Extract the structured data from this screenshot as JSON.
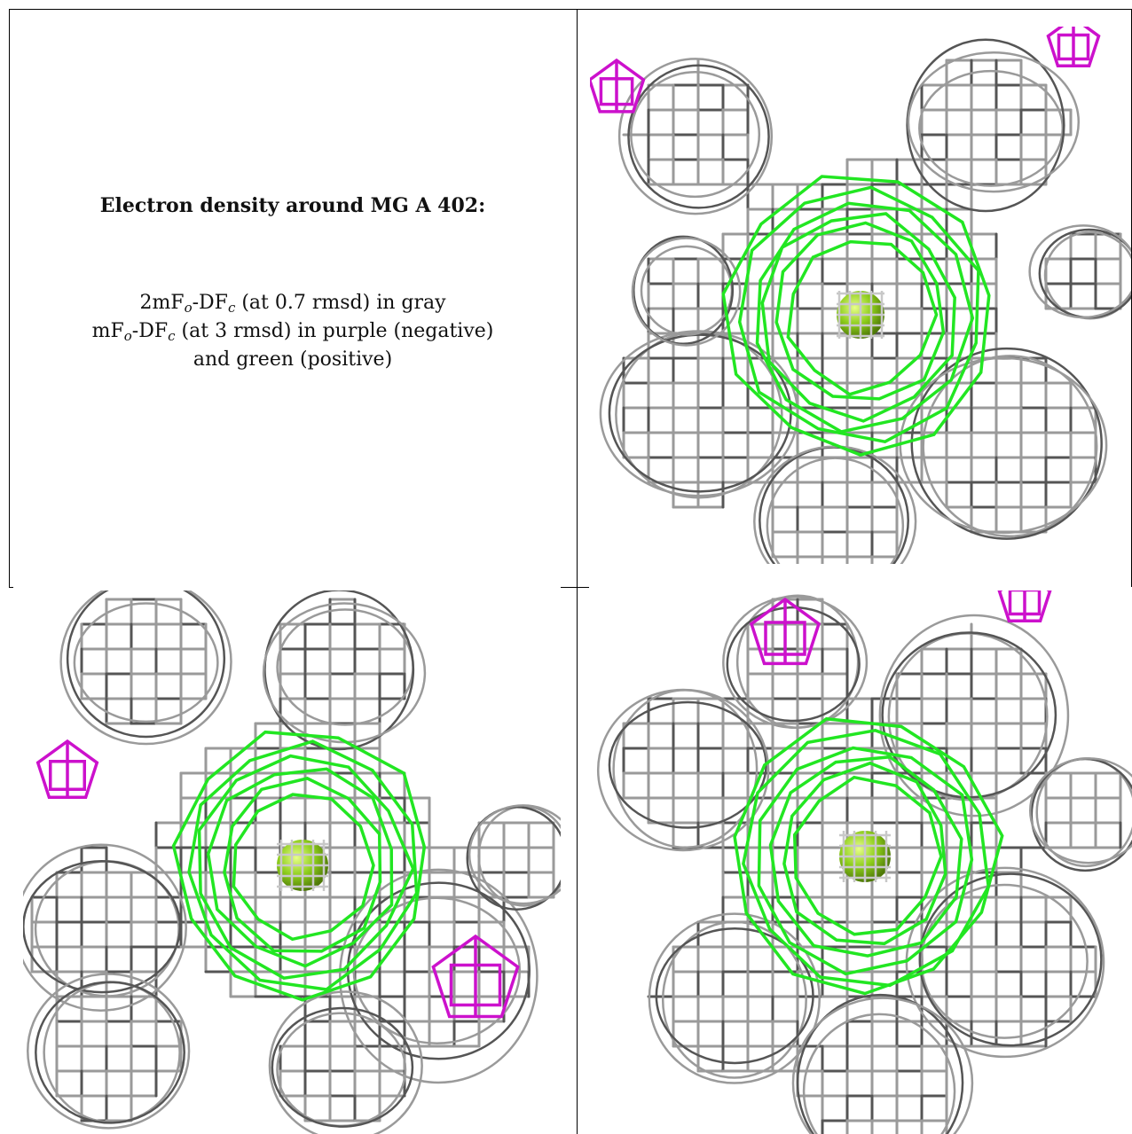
{
  "caption": {
    "title": "Electron density around MG A 402:",
    "line1_pre": "2mF",
    "line1_sub_o": "o",
    "line1_mid": "-DF",
    "line1_sub_c": "c",
    "line1_post": " (at 0.7 rmsd) in gray",
    "line2_pre": "mF",
    "line2_sub_o": "o",
    "line2_mid": "-DF",
    "line2_sub_c": "c",
    "line2_post": " (at 3 rmsd) in purple (negative)",
    "line3": "and green (positive)"
  },
  "colors": {
    "mesh_gray": "#9a9a9a",
    "mesh_dark": "#555555",
    "positive_green": "#22e622",
    "negative_purple": "#cc11cc",
    "atom": "#8ccc1a"
  },
  "panels": [
    {
      "name": "view-top-right",
      "atom": "MG"
    },
    {
      "name": "view-bottom-left",
      "atom": "MG"
    },
    {
      "name": "view-bottom-right",
      "atom": "MG"
    }
  ]
}
